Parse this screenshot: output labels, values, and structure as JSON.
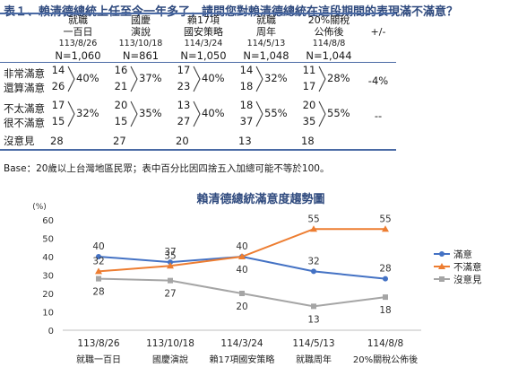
{
  "title": "表１、賴清德總統上任至今一年多了，請問您對賴清德總統在這段期間的表現滿不滿意？",
  "table": {
    "columns": [
      {
        "line1": "就職",
        "line2": "一百日",
        "date": "113/8/26",
        "n": "N=1,060"
      },
      {
        "line1": "國慶",
        "line2": "演說",
        "date": "113/10/18",
        "n": "N=861"
      },
      {
        "line1": "賴17項",
        "line2": "國安策略",
        "date": "114/3/24",
        "n": "N=1,050"
      },
      {
        "line1": "就職",
        "line2": "周年",
        "date": "114/5/13",
        "n": "N=1,048"
      },
      {
        "line1": "20%關稅",
        "line2": "公佈後",
        "date": "114/8/8",
        "n": "N=1,044"
      }
    ],
    "diff_header": "+/-",
    "rows": {
      "very_satisfied": "非常滿意",
      "somewhat_satisfied": "還算滿意",
      "not_very_satisfied": "不太滿意",
      "not_at_all_satisfied": "很不滿意",
      "no_opinion": "沒意見"
    },
    "satisfied": {
      "very": [
        "14",
        "16",
        "17",
        "14",
        "11"
      ],
      "somewhat": [
        "26",
        "21",
        "23",
        "18",
        "17"
      ],
      "total": [
        "40%",
        "37%",
        "40%",
        "32%",
        "28%"
      ],
      "diff": "-4%"
    },
    "dissatisfied": {
      "not_very": [
        "17",
        "20",
        "13",
        "18",
        "20"
      ],
      "not_at_all": [
        "15",
        "15",
        "27",
        "37",
        "35"
      ],
      "total": [
        "32%",
        "35%",
        "40%",
        "55%",
        "55%"
      ],
      "diff": "--"
    },
    "no_opinion": [
      "28",
      "27",
      "20",
      "13",
      "18"
    ]
  },
  "note": "Base：20歲以上台灣地區民眾；表中百分比因四捨五入加總可能不等於100。",
  "chart_data": {
    "type": "line",
    "title": "賴清德總統滿意度趨勢圖",
    "ylabel": "(%)",
    "ylim": [
      0,
      60
    ],
    "yticks": [
      0,
      10,
      20,
      30,
      40,
      50,
      60
    ],
    "x": [
      "113/8/26",
      "113/10/18",
      "114/3/24",
      "114/5/13",
      "114/8/8"
    ],
    "x_sub": [
      "就職一百日",
      "國慶演說",
      "賴17項國安策略",
      "就職周年",
      "20%關稅公佈後"
    ],
    "series": [
      {
        "name": "滿意",
        "values": [
          40,
          37,
          40,
          32,
          28
        ],
        "color": "#4472c4"
      },
      {
        "name": "不滿意",
        "values": [
          32,
          35,
          40,
          55,
          55
        ],
        "color": "#ed7d31"
      },
      {
        "name": "沒意見",
        "values": [
          28,
          27,
          20,
          13,
          18
        ],
        "color": "#a5a5a5"
      }
    ],
    "legend": "right",
    "grid": false
  }
}
